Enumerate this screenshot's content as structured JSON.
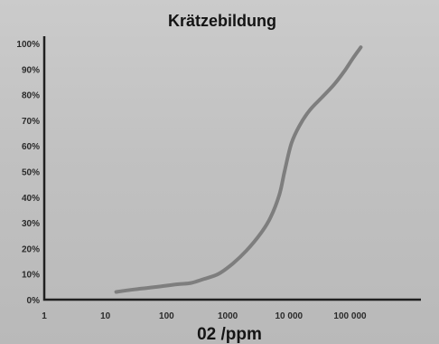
{
  "chart_data": {
    "type": "line",
    "title": "Krätzebildung",
    "xlabel": "02 /ppm",
    "ylabel": "",
    "x_scale": "log",
    "xlim": [
      1,
      300000
    ],
    "ylim": [
      0,
      1
    ],
    "x_ticks": [
      {
        "value": 1,
        "label": "1"
      },
      {
        "value": 10,
        "label": "10"
      },
      {
        "value": 100,
        "label": "100"
      },
      {
        "value": 1000,
        "label": "1000"
      },
      {
        "value": 10000,
        "label": "10 000"
      },
      {
        "value": 100000,
        "label": "100 000"
      }
    ],
    "y_ticks": [
      {
        "value": 0,
        "label": "0%"
      },
      {
        "value": 0.1,
        "label": "10%"
      },
      {
        "value": 0.2,
        "label": "20%"
      },
      {
        "value": 0.3,
        "label": "30%"
      },
      {
        "value": 0.4,
        "label": "40%"
      },
      {
        "value": 0.5,
        "label": "50%"
      },
      {
        "value": 0.6,
        "label": "60%"
      },
      {
        "value": 0.7,
        "label": "70%"
      },
      {
        "value": 0.8,
        "label": "80%"
      },
      {
        "value": 0.9,
        "label": "90%"
      },
      {
        "value": 1.0,
        "label": "100%"
      }
    ],
    "grid": false,
    "series": [
      {
        "color": "#7e7e7e",
        "points": [
          {
            "x": 15,
            "y": 0.03
          },
          {
            "x": 30,
            "y": 0.04
          },
          {
            "x": 70,
            "y": 0.05
          },
          {
            "x": 150,
            "y": 0.06
          },
          {
            "x": 250,
            "y": 0.065
          },
          {
            "x": 400,
            "y": 0.08
          },
          {
            "x": 700,
            "y": 0.1
          },
          {
            "x": 1200,
            "y": 0.14
          },
          {
            "x": 2000,
            "y": 0.19
          },
          {
            "x": 3500,
            "y": 0.26
          },
          {
            "x": 5000,
            "y": 0.32
          },
          {
            "x": 7000,
            "y": 0.41
          },
          {
            "x": 8500,
            "y": 0.5
          },
          {
            "x": 11000,
            "y": 0.61
          },
          {
            "x": 15000,
            "y": 0.68
          },
          {
            "x": 22000,
            "y": 0.74
          },
          {
            "x": 35000,
            "y": 0.79
          },
          {
            "x": 55000,
            "y": 0.84
          },
          {
            "x": 80000,
            "y": 0.89
          },
          {
            "x": 110000,
            "y": 0.94
          },
          {
            "x": 150000,
            "y": 0.985
          }
        ]
      }
    ]
  }
}
